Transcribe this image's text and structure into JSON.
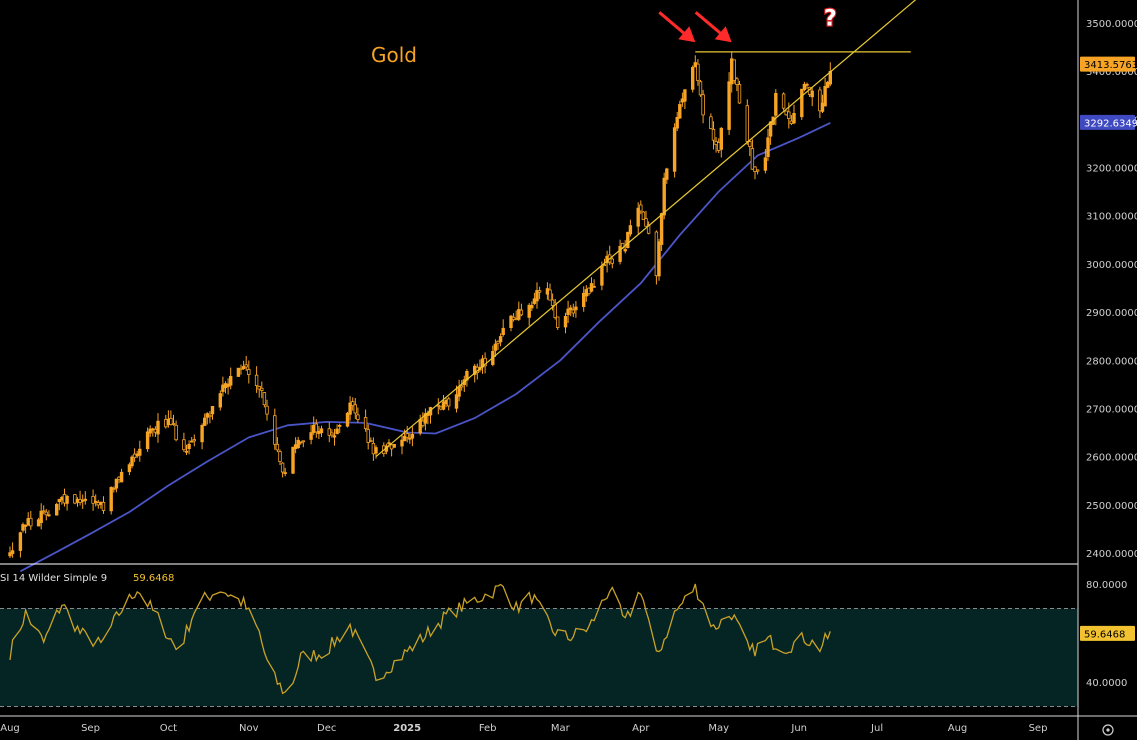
{
  "chart_data": [
    {
      "type": "candlestick",
      "title": "Gold",
      "x_unit": "date",
      "x_ticks": [
        "Aug",
        "Sep",
        "Oct",
        "Nov",
        "Dec",
        "2025",
        "Feb",
        "Mar",
        "Apr",
        "May",
        "Jun",
        "Jul",
        "Aug",
        "Sep"
      ],
      "y_ticks": [
        "2400.0000",
        "2500.0000",
        "2600.0000",
        "2700.0000",
        "2800.0000",
        "2900.0000",
        "3000.0000",
        "3100.0000",
        "3200.0000",
        "3300.0000",
        "3400.0000",
        "3500.0000"
      ],
      "ylim": [
        2375,
        3550
      ],
      "grid": false,
      "last_price": "3413.5763",
      "moving_average": {
        "last_value": "3292.6349",
        "color": "#4a55c8",
        "points": [
          [
            "2024-08-05",
            2362
          ],
          [
            "2024-08-20",
            2405
          ],
          [
            "2024-09-01",
            2440
          ],
          [
            "2024-09-16",
            2485
          ],
          [
            "2024-10-01",
            2540
          ],
          [
            "2024-10-16",
            2590
          ],
          [
            "2024-11-01",
            2640
          ],
          [
            "2024-11-16",
            2665
          ],
          [
            "2024-12-01",
            2672
          ],
          [
            "2024-12-16",
            2670
          ],
          [
            "2025-01-01",
            2650
          ],
          [
            "2025-01-12",
            2648
          ],
          [
            "2025-01-27",
            2680
          ],
          [
            "2025-02-12",
            2730
          ],
          [
            "2025-03-01",
            2800
          ],
          [
            "2025-03-16",
            2880
          ],
          [
            "2025-04-01",
            2960
          ],
          [
            "2025-04-16",
            3060
          ],
          [
            "2025-05-01",
            3150
          ],
          [
            "2025-05-16",
            3225
          ],
          [
            "2025-06-01",
            3262
          ],
          [
            "2025-06-13",
            3292.6
          ]
        ]
      },
      "lines": [
        {
          "name": "support trendline",
          "color": "#e8c933",
          "from": [
            "2024-12-20",
            2600
          ],
          "to": [
            "2025-07-25",
            3590
          ]
        },
        {
          "name": "resistance",
          "color": "#e8c933",
          "from": [
            "2025-04-22",
            3440
          ],
          "to": [
            "2025-07-14",
            3440
          ]
        }
      ],
      "price_path": [
        [
          "2024-08-01",
          2400
        ],
        [
          "2024-08-06",
          2460
        ],
        [
          "2024-08-12",
          2470
        ],
        [
          "2024-08-20",
          2510
        ],
        [
          "2024-08-29",
          2515
        ],
        [
          "2024-09-06",
          2500
        ],
        [
          "2024-09-13",
          2560
        ],
        [
          "2024-09-24",
          2660
        ],
        [
          "2024-10-01",
          2670
        ],
        [
          "2024-10-08",
          2615
        ],
        [
          "2024-10-16",
          2685
        ],
        [
          "2024-10-22",
          2740
        ],
        [
          "2024-10-30",
          2785
        ],
        [
          "2024-11-05",
          2745
        ],
        [
          "2024-11-08",
          2690
        ],
        [
          "2024-11-14",
          2565
        ],
        [
          "2024-11-19",
          2620
        ],
        [
          "2024-11-25",
          2660
        ],
        [
          "2024-12-04",
          2645
        ],
        [
          "2024-12-11",
          2710
        ],
        [
          "2024-12-19",
          2610
        ],
        [
          "2024-12-24",
          2620
        ],
        [
          "2025-01-02",
          2650
        ],
        [
          "2025-01-10",
          2690
        ],
        [
          "2025-01-17",
          2710
        ],
        [
          "2025-01-24",
          2765
        ],
        [
          "2025-01-31",
          2800
        ],
        [
          "2025-02-07",
          2860
        ],
        [
          "2025-02-11",
          2890
        ],
        [
          "2025-02-19",
          2930
        ],
        [
          "2025-02-24",
          2950
        ],
        [
          "2025-02-28",
          2860
        ],
        [
          "2025-03-06",
          2910
        ],
        [
          "2025-03-12",
          2940
        ],
        [
          "2025-03-18",
          3000
        ],
        [
          "2025-03-25",
          3030
        ],
        [
          "2025-04-01",
          3120
        ],
        [
          "2025-04-03",
          3090
        ],
        [
          "2025-04-07",
          2980
        ],
        [
          "2025-04-10",
          3180
        ],
        [
          "2025-04-16",
          3320
        ],
        [
          "2025-04-22",
          3430
        ],
        [
          "2025-04-25",
          3310
        ],
        [
          "2025-05-01",
          3230
        ],
        [
          "2025-05-06",
          3420
        ],
        [
          "2025-05-09",
          3330
        ],
        [
          "2025-05-15",
          3180
        ],
        [
          "2025-05-19",
          3230
        ],
        [
          "2025-05-23",
          3340
        ],
        [
          "2025-05-29",
          3300
        ],
        [
          "2025-06-03",
          3380
        ],
        [
          "2025-06-09",
          3320
        ],
        [
          "2025-06-12",
          3390
        ],
        [
          "2025-06-13",
          3413.6
        ]
      ],
      "annotations": [
        {
          "type": "arrow",
          "color": "#ff2a2a",
          "at": [
            "2025-04-22",
            3460
          ]
        },
        {
          "type": "arrow",
          "color": "#ff2a2a",
          "at": [
            "2025-05-06",
            3460
          ]
        },
        {
          "type": "question-icon",
          "text": "?",
          "at": [
            "2025-06-13",
            3495
          ]
        }
      ]
    },
    {
      "type": "line",
      "label": "SI 14 Wilder Simple 9",
      "last_value": "59.6468",
      "line_color": "#c9a227",
      "band_color": "#052424",
      "y_ticks": [
        "40.0000",
        "80.0000"
      ],
      "ylim": [
        32,
        86
      ],
      "band": [
        30,
        70
      ],
      "rsi_path": [
        [
          "2024-08-01",
          52
        ],
        [
          "2024-08-07",
          68
        ],
        [
          "2024-08-14",
          56
        ],
        [
          "2024-08-21",
          72
        ],
        [
          "2024-08-28",
          60
        ],
        [
          "2024-09-05",
          55
        ],
        [
          "2024-09-12",
          68
        ],
        [
          "2024-09-19",
          78
        ],
        [
          "2024-09-27",
          66
        ],
        [
          "2024-10-05",
          52
        ],
        [
          "2024-10-12",
          72
        ],
        [
          "2024-10-21",
          78
        ],
        [
          "2024-10-30",
          72
        ],
        [
          "2024-11-05",
          60
        ],
        [
          "2024-11-09",
          44
        ],
        [
          "2024-11-16",
          34
        ],
        [
          "2024-11-21",
          50
        ],
        [
          "2024-11-30",
          52
        ],
        [
          "2024-12-10",
          63
        ],
        [
          "2024-12-20",
          42
        ],
        [
          "2024-12-27",
          48
        ],
        [
          "2025-01-07",
          58
        ],
        [
          "2025-01-16",
          67
        ],
        [
          "2025-01-26",
          73
        ],
        [
          "2025-02-07",
          79
        ],
        [
          "2025-02-12",
          70
        ],
        [
          "2025-02-18",
          75
        ],
        [
          "2025-02-26",
          61
        ],
        [
          "2025-03-04",
          58
        ],
        [
          "2025-03-12",
          62
        ],
        [
          "2025-03-20",
          78
        ],
        [
          "2025-03-26",
          64
        ],
        [
          "2025-04-01",
          78
        ],
        [
          "2025-04-07",
          50
        ],
        [
          "2025-04-14",
          68
        ],
        [
          "2025-04-22",
          79
        ],
        [
          "2025-04-29",
          62
        ],
        [
          "2025-05-06",
          68
        ],
        [
          "2025-05-13",
          52
        ],
        [
          "2025-05-20",
          57
        ],
        [
          "2025-05-27",
          54
        ],
        [
          "2025-06-03",
          58
        ],
        [
          "2025-06-09",
          54
        ],
        [
          "2025-06-13",
          59.6
        ]
      ]
    }
  ]
}
